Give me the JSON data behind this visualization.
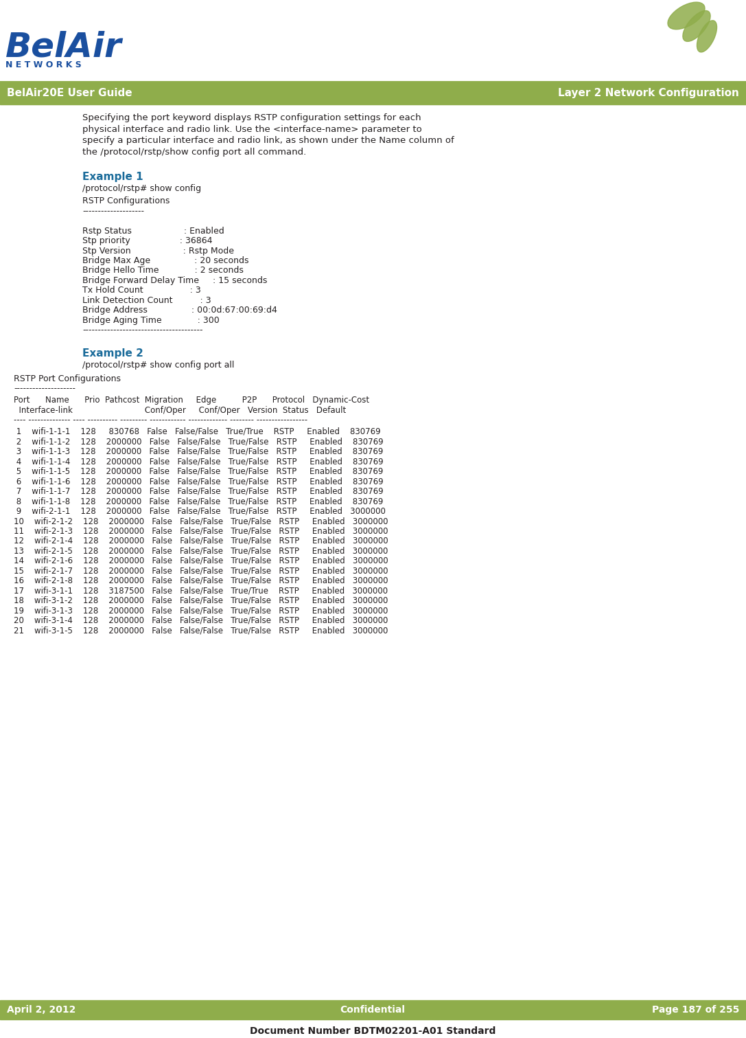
{
  "page_bg": "#ffffff",
  "header_bg": "#8fad4b",
  "header_text_left": "BelAir20E User Guide",
  "header_text_right": "Layer 2 Network Configuration",
  "header_text_color": "#ffffff",
  "footer_bg": "#8fad4b",
  "footer_left": "April 2, 2012",
  "footer_center": "Confidential",
  "footer_right": "Page 187 of 255",
  "footer_bottom": "Document Number BDTM02201-A01 Standard",
  "footer_text_color": "#ffffff",
  "belair_color": "#1a4f9f",
  "networks_color": "#1a4f9f",
  "logo_leaf_color": "#8fad4b",
  "separator_color": "#8fad4b",
  "example_heading_color": "#1a6b9a",
  "body_text_color": "#231f20",
  "code_text_color": "#231f20",
  "intro_text": [
    "Specifying the port keyword displays RSTP configuration settings for each",
    "physical interface and radio link. Use the <interface-name> parameter to",
    "specify a particular interface and radio link, as shown under the Name column of",
    "the /protocol/rstp/show config port all command."
  ],
  "intro_italic_words": [
    "port",
    "<interface-name>",
    "Name",
    "/protocol/rstp/show config port all"
  ],
  "example1_heading": "Example 1",
  "example1_cmd": "/protocol/rstp# show config",
  "example1_output": [
    "RSTP Configurations",
    "--------------------",
    "",
    "Rstp Status                   : Enabled",
    "Stp priority                  : 36864",
    "Stp Version                   : Rstp Mode",
    "Bridge Max Age                : 20 seconds",
    "Bridge Hello Time             : 2 seconds",
    "Bridge Forward Delay Time     : 15 seconds",
    "Tx Hold Count                 : 3",
    "Link Detection Count          : 3",
    "Bridge Address                : 00:0d:67:00:69:d4",
    "Bridge Aging Time             : 300",
    "---------------------------------------"
  ],
  "example2_heading": "Example 2",
  "example2_cmd": "/protocol/rstp# show config port all",
  "port_table_header1": "Port      Name      Prio  Pathcost  Migration     Edge          P2P      Protocol   Dynamic-Cost",
  "port_table_header2": "  Interface-link                            Conf/Oper     Conf/Oper   Version  Status   Default",
  "port_table_sep": "---- -------------- ---- ---------- --------- ------------ ------------- -------- -----------------",
  "port_rows": [
    " 1    wifi-1-1-1    128     830768   False   False/False   True/True    RSTP     Enabled    830769",
    " 2    wifi-1-1-2    128    2000000   False   False/False   True/False   RSTP     Enabled    830769",
    " 3    wifi-1-1-3    128    2000000   False   False/False   True/False   RSTP     Enabled    830769",
    " 4    wifi-1-1-4    128    2000000   False   False/False   True/False   RSTP     Enabled    830769",
    " 5    wifi-1-1-5    128    2000000   False   False/False   True/False   RSTP     Enabled    830769",
    " 6    wifi-1-1-6    128    2000000   False   False/False   True/False   RSTP     Enabled    830769",
    " 7    wifi-1-1-7    128    2000000   False   False/False   True/False   RSTP     Enabled    830769",
    " 8    wifi-1-1-8    128    2000000   False   False/False   True/False   RSTP     Enabled    830769",
    " 9    wifi-2-1-1    128    2000000   False   False/False   True/False   RSTP     Enabled   3000000",
    "10    wifi-2-1-2    128    2000000   False   False/False   True/False   RSTP     Enabled   3000000",
    "11    wifi-2-1-3    128    2000000   False   False/False   True/False   RSTP     Enabled   3000000",
    "12    wifi-2-1-4    128    2000000   False   False/False   True/False   RSTP     Enabled   3000000",
    "13    wifi-2-1-5    128    2000000   False   False/False   True/False   RSTP     Enabled   3000000",
    "14    wifi-2-1-6    128    2000000   False   False/False   True/False   RSTP     Enabled   3000000",
    "15    wifi-2-1-7    128    2000000   False   False/False   True/False   RSTP     Enabled   3000000",
    "16    wifi-2-1-8    128    2000000   False   False/False   True/False   RSTP     Enabled   3000000",
    "17    wifi-3-1-1    128    3187500   False   False/False   True/True    RSTP     Enabled   3000000",
    "18    wifi-3-1-2    128    2000000   False   False/False   True/False   RSTP     Enabled   3000000",
    "19    wifi-3-1-3    128    2000000   False   False/False   True/False   RSTP     Enabled   3000000",
    "20    wifi-3-1-4    128    2000000   False   False/False   True/False   RSTP     Enabled   3000000",
    "21    wifi-3-1-5    128    2000000   False   False/False   True/False   RSTP     Enabled   3000000"
  ]
}
